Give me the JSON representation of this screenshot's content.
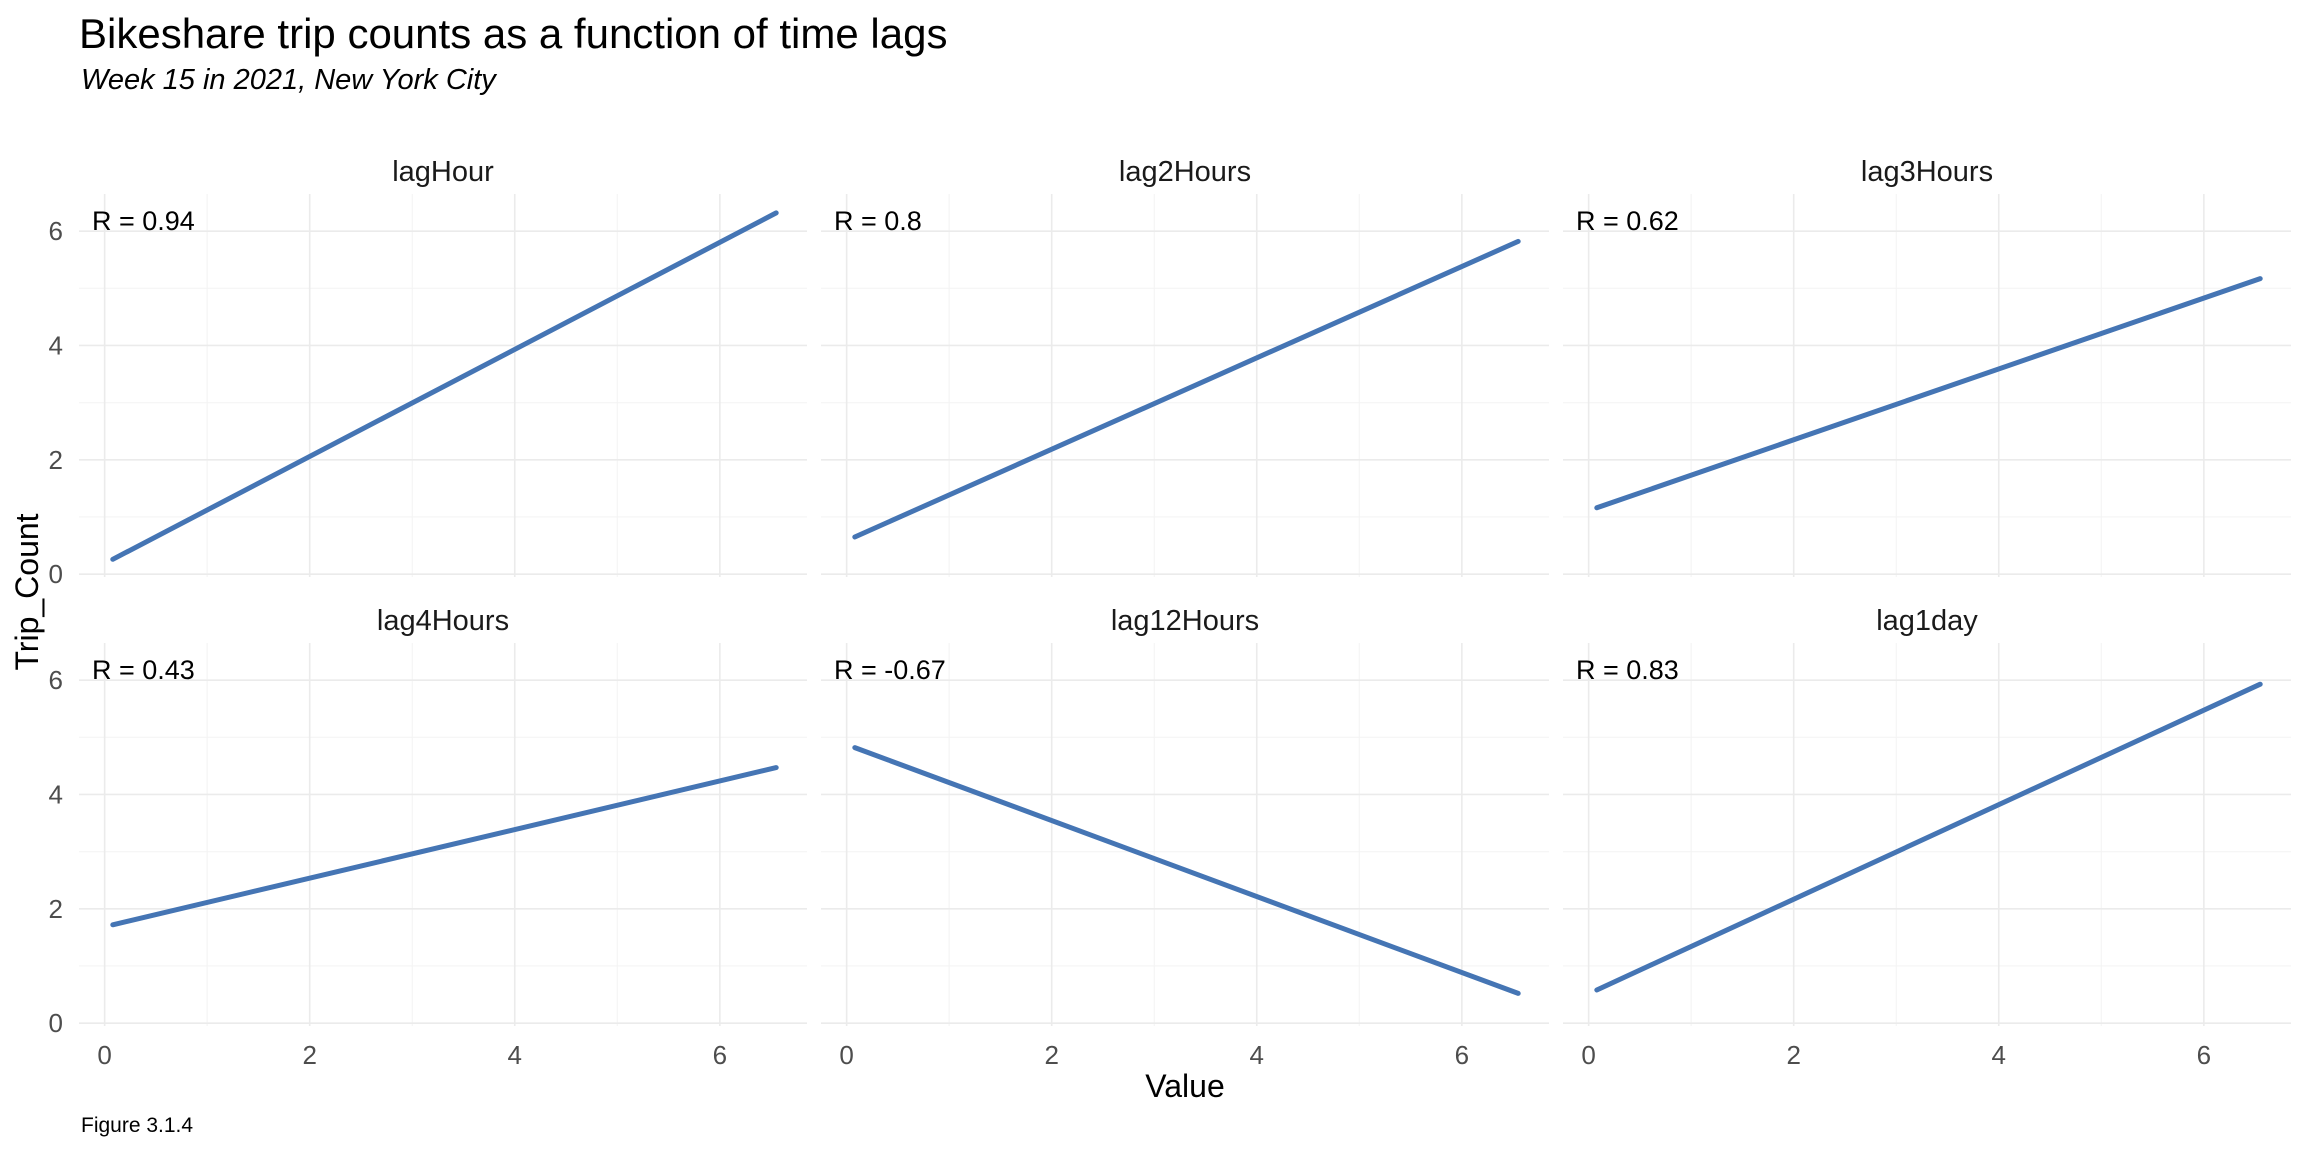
{
  "figure": {
    "title": "Bikeshare trip counts as a function of time lags",
    "subtitle": "Week 15 in 2021, New York City",
    "caption": "Figure 3.1.4"
  },
  "chart_data": {
    "type": "line",
    "title": "Bikeshare trip counts as a function of time lags",
    "subtitle": "Week 15 in 2021, New York City",
    "xlabel": "Value",
    "ylabel": "Trip_Count",
    "xlim": [
      -0.25,
      6.85
    ],
    "ylim": [
      -0.05,
      6.65
    ],
    "x_ticks": [
      0,
      2,
      4,
      6
    ],
    "y_ticks": [
      0,
      2,
      4,
      6
    ],
    "x_tick_labels": [
      "0",
      "2",
      "4",
      "6"
    ],
    "y_tick_labels": [
      "0",
      "2",
      "4",
      "6"
    ],
    "grid": true,
    "line_color": "#4575b4",
    "facets": [
      {
        "name": "lagHour",
        "annotation": "R = 0.94",
        "x": [
          0.08,
          6.55
        ],
        "y": [
          0.26,
          6.32
        ]
      },
      {
        "name": "lag2Hours",
        "annotation": "R = 0.8",
        "x": [
          0.08,
          6.55
        ],
        "y": [
          0.65,
          5.82
        ]
      },
      {
        "name": "lag3Hours",
        "annotation": "R = 0.62",
        "x": [
          0.08,
          6.55
        ],
        "y": [
          1.16,
          5.17
        ]
      },
      {
        "name": "lag4Hours",
        "annotation": "R = 0.43",
        "x": [
          0.08,
          6.55
        ],
        "y": [
          1.72,
          4.47
        ]
      },
      {
        "name": "lag12Hours",
        "annotation": "R = -0.67",
        "x": [
          0.08,
          6.55
        ],
        "y": [
          4.82,
          0.52
        ]
      },
      {
        "name": "lag1day",
        "annotation": "R = 0.83",
        "x": [
          0.08,
          6.55
        ],
        "y": [
          0.58,
          5.93
        ]
      }
    ]
  }
}
